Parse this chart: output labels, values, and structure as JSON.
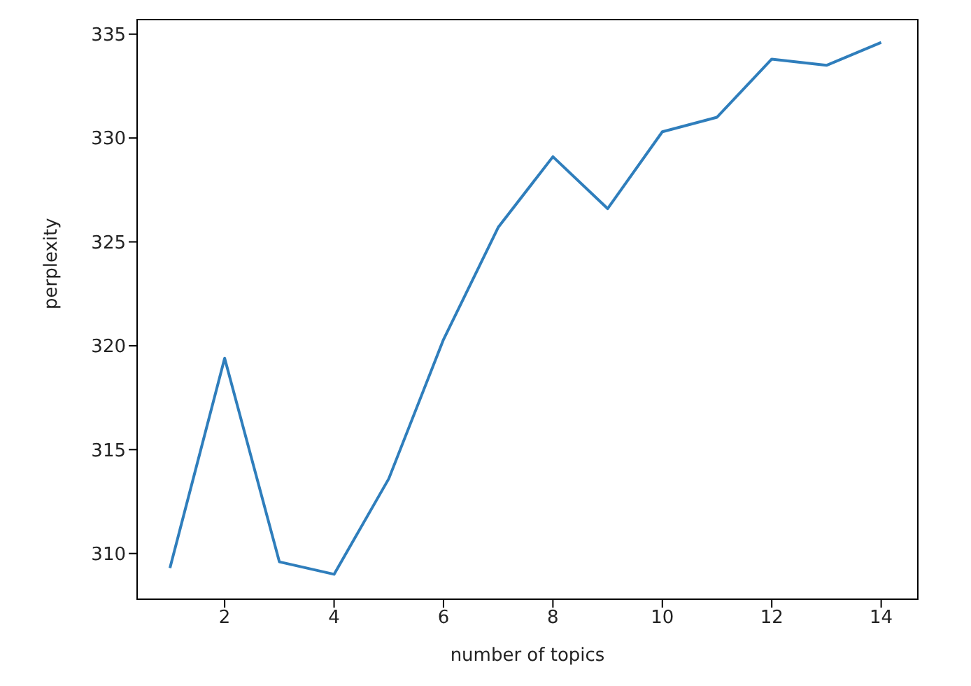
{
  "chart_data": {
    "type": "line",
    "xlabel": "number of topics",
    "ylabel": "perplexity",
    "x": [
      1,
      2,
      3,
      4,
      5,
      6,
      7,
      8,
      9,
      10,
      11,
      12,
      13,
      14
    ],
    "series": [
      {
        "color": "#2f7ebc",
        "values": [
          309.3,
          319.4,
          309.6,
          309.0,
          313.6,
          320.3,
          325.7,
          329.1,
          326.6,
          330.3,
          331.0,
          333.8,
          333.5,
          334.6
        ]
      }
    ],
    "xlim": [
      0.4,
      14.67
    ],
    "xticks": [
      2,
      4,
      6,
      8,
      10,
      12,
      14
    ],
    "ylim": [
      307.8,
      335.7
    ],
    "yticks": [
      310,
      315,
      320,
      325,
      330,
      335
    ],
    "grid": false,
    "legend": false,
    "marker": "none",
    "line_style": "solid"
  }
}
